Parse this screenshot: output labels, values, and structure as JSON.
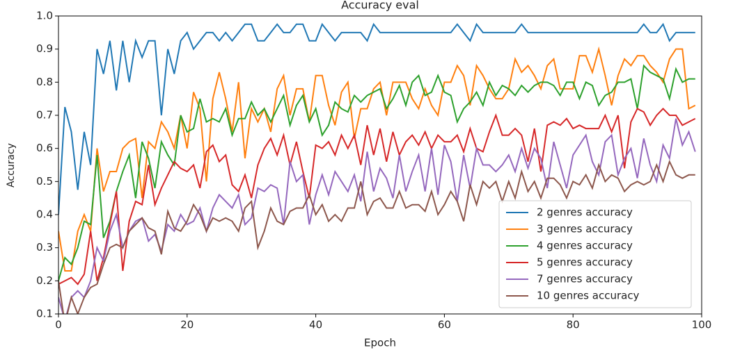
{
  "chart_data": {
    "type": "line",
    "title": "Accuracy eval",
    "x_label": "Epoch",
    "y_label": "Accuracy",
    "x": [
      0,
      1,
      2,
      3,
      4,
      5,
      6,
      7,
      8,
      9,
      10,
      11,
      12,
      13,
      14,
      15,
      16,
      17,
      18,
      19,
      20,
      21,
      22,
      23,
      24,
      25,
      26,
      27,
      28,
      29,
      30,
      31,
      32,
      33,
      34,
      35,
      36,
      37,
      38,
      39,
      40,
      41,
      42,
      43,
      44,
      45,
      46,
      47,
      48,
      49,
      50,
      51,
      52,
      53,
      54,
      55,
      56,
      57,
      58,
      59,
      60,
      61,
      62,
      63,
      64,
      65,
      66,
      67,
      68,
      69,
      70,
      71,
      72,
      73,
      74,
      75,
      76,
      77,
      78,
      79,
      80,
      81,
      82,
      83,
      84,
      85,
      86,
      87,
      88,
      89,
      90,
      91,
      92,
      93,
      94,
      95,
      96,
      97,
      98,
      99
    ],
    "xlim": [
      0,
      100
    ],
    "xticks": [
      0,
      20,
      40,
      60,
      80,
      100
    ],
    "ylim": [
      0.1,
      1.0
    ],
    "yticks": [
      0.1,
      0.2,
      0.3,
      0.4,
      0.5,
      0.6,
      0.7,
      0.8,
      0.9,
      {
        "value": 1.0,
        "label": "1.0"
      }
    ],
    "legend": "lower right",
    "series": [
      {
        "name": "2 genres accuracy",
        "color": "#1f77b4",
        "values": [
          0.4,
          0.725,
          0.65,
          0.475,
          0.65,
          0.55,
          0.9,
          0.825,
          0.925,
          0.775,
          0.925,
          0.8,
          0.925,
          0.875,
          0.925,
          0.925,
          0.7,
          0.9,
          0.825,
          0.925,
          0.95,
          0.9,
          0.925,
          0.95,
          0.95,
          0.925,
          0.95,
          0.925,
          0.95,
          0.975,
          0.975,
          0.925,
          0.925,
          0.95,
          0.975,
          0.95,
          0.95,
          0.975,
          0.975,
          0.925,
          0.925,
          0.975,
          0.95,
          0.925,
          0.95,
          0.95,
          0.95,
          0.95,
          0.925,
          0.975,
          0.95,
          0.95,
          0.95,
          0.95,
          0.95,
          0.95,
          0.95,
          0.95,
          0.95,
          0.95,
          0.95,
          0.95,
          0.975,
          0.95,
          0.925,
          0.975,
          0.95,
          0.95,
          0.95,
          0.95,
          0.95,
          0.95,
          0.975,
          0.95,
          0.95,
          0.95,
          0.95,
          0.95,
          0.95,
          0.95,
          0.95,
          0.95,
          0.95,
          0.95,
          0.95,
          0.95,
          0.95,
          0.95,
          0.95,
          0.95,
          0.95,
          0.975,
          0.95,
          0.95,
          0.975,
          0.925,
          0.95,
          0.95,
          0.95,
          0.95
        ]
      },
      {
        "name": "3 genres accuracy",
        "color": "#ff7f0e",
        "values": [
          0.35,
          0.23,
          0.23,
          0.35,
          0.4,
          0.35,
          0.6,
          0.47,
          0.53,
          0.53,
          0.6,
          0.62,
          0.63,
          0.45,
          0.62,
          0.6,
          0.68,
          0.65,
          0.6,
          0.7,
          0.6,
          0.77,
          0.72,
          0.5,
          0.75,
          0.83,
          0.75,
          0.65,
          0.8,
          0.57,
          0.72,
          0.68,
          0.72,
          0.65,
          0.78,
          0.82,
          0.7,
          0.78,
          0.78,
          0.68,
          0.82,
          0.82,
          0.73,
          0.67,
          0.77,
          0.8,
          0.63,
          0.72,
          0.72,
          0.78,
          0.8,
          0.7,
          0.8,
          0.8,
          0.8,
          0.75,
          0.72,
          0.78,
          0.73,
          0.7,
          0.8,
          0.8,
          0.85,
          0.82,
          0.73,
          0.85,
          0.82,
          0.78,
          0.75,
          0.75,
          0.78,
          0.87,
          0.83,
          0.85,
          0.82,
          0.78,
          0.85,
          0.87,
          0.78,
          0.78,
          0.78,
          0.88,
          0.88,
          0.83,
          0.9,
          0.82,
          0.73,
          0.82,
          0.87,
          0.85,
          0.88,
          0.88,
          0.85,
          0.83,
          0.8,
          0.87,
          0.9,
          0.9,
          0.72,
          0.73
        ]
      },
      {
        "name": "4 genres accuracy",
        "color": "#2ca02c",
        "values": [
          0.2,
          0.27,
          0.25,
          0.3,
          0.38,
          0.37,
          0.58,
          0.33,
          0.38,
          0.47,
          0.53,
          0.58,
          0.45,
          0.62,
          0.57,
          0.48,
          0.62,
          0.58,
          0.55,
          0.7,
          0.65,
          0.66,
          0.75,
          0.68,
          0.69,
          0.68,
          0.72,
          0.64,
          0.69,
          0.69,
          0.74,
          0.7,
          0.72,
          0.68,
          0.72,
          0.76,
          0.67,
          0.73,
          0.76,
          0.68,
          0.72,
          0.64,
          0.67,
          0.74,
          0.72,
          0.71,
          0.76,
          0.74,
          0.76,
          0.77,
          0.78,
          0.72,
          0.75,
          0.79,
          0.73,
          0.8,
          0.82,
          0.76,
          0.77,
          0.82,
          0.77,
          0.76,
          0.68,
          0.72,
          0.74,
          0.77,
          0.73,
          0.8,
          0.76,
          0.79,
          0.78,
          0.76,
          0.79,
          0.77,
          0.79,
          0.8,
          0.8,
          0.79,
          0.76,
          0.8,
          0.8,
          0.75,
          0.8,
          0.79,
          0.73,
          0.76,
          0.77,
          0.8,
          0.8,
          0.81,
          0.72,
          0.85,
          0.83,
          0.82,
          0.81,
          0.75,
          0.84,
          0.8,
          0.81,
          0.81
        ]
      },
      {
        "name": "5 genres accuracy",
        "color": "#d62728",
        "values": [
          0.19,
          0.2,
          0.21,
          0.19,
          0.22,
          0.35,
          0.2,
          0.27,
          0.37,
          0.47,
          0.23,
          0.38,
          0.44,
          0.43,
          0.55,
          0.43,
          0.48,
          0.52,
          0.56,
          0.54,
          0.53,
          0.55,
          0.48,
          0.59,
          0.61,
          0.56,
          0.58,
          0.49,
          0.47,
          0.52,
          0.45,
          0.55,
          0.6,
          0.63,
          0.58,
          0.64,
          0.55,
          0.62,
          0.53,
          0.45,
          0.61,
          0.6,
          0.62,
          0.58,
          0.64,
          0.6,
          0.64,
          0.55,
          0.67,
          0.58,
          0.66,
          0.56,
          0.65,
          0.58,
          0.62,
          0.64,
          0.61,
          0.65,
          0.6,
          0.64,
          0.62,
          0.62,
          0.64,
          0.59,
          0.66,
          0.6,
          0.59,
          0.65,
          0.7,
          0.64,
          0.64,
          0.66,
          0.64,
          0.56,
          0.66,
          0.53,
          0.67,
          0.68,
          0.67,
          0.69,
          0.66,
          0.67,
          0.66,
          0.66,
          0.66,
          0.7,
          0.65,
          0.7,
          0.54,
          0.68,
          0.72,
          0.71,
          0.67,
          0.7,
          0.72,
          0.7,
          0.7,
          0.67,
          0.68,
          0.69
        ]
      },
      {
        "name": "7 genres accuracy",
        "color": "#9467bd",
        "values": [
          0.15,
          0.08,
          0.15,
          0.17,
          0.15,
          0.2,
          0.3,
          0.26,
          0.35,
          0.4,
          0.3,
          0.35,
          0.38,
          0.39,
          0.32,
          0.34,
          0.29,
          0.37,
          0.35,
          0.4,
          0.37,
          0.38,
          0.42,
          0.35,
          0.42,
          0.46,
          0.44,
          0.42,
          0.46,
          0.37,
          0.39,
          0.48,
          0.47,
          0.49,
          0.48,
          0.37,
          0.56,
          0.5,
          0.52,
          0.37,
          0.46,
          0.52,
          0.46,
          0.53,
          0.5,
          0.47,
          0.52,
          0.44,
          0.59,
          0.47,
          0.54,
          0.51,
          0.45,
          0.58,
          0.47,
          0.53,
          0.58,
          0.47,
          0.6,
          0.46,
          0.61,
          0.56,
          0.44,
          0.58,
          0.48,
          0.6,
          0.55,
          0.55,
          0.53,
          0.55,
          0.58,
          0.53,
          0.6,
          0.54,
          0.6,
          0.57,
          0.48,
          0.62,
          0.55,
          0.48,
          0.58,
          0.61,
          0.64,
          0.56,
          0.52,
          0.62,
          0.64,
          0.52,
          0.57,
          0.6,
          0.51,
          0.63,
          0.55,
          0.5,
          0.61,
          0.57,
          0.69,
          0.61,
          0.65,
          0.59
        ]
      },
      {
        "name": "10 genres accuracy",
        "color": "#8c564b",
        "values": [
          0.2,
          0.07,
          0.15,
          0.1,
          0.15,
          0.18,
          0.19,
          0.25,
          0.3,
          0.31,
          0.3,
          0.35,
          0.37,
          0.39,
          0.36,
          0.35,
          0.28,
          0.41,
          0.36,
          0.35,
          0.38,
          0.43,
          0.4,
          0.35,
          0.39,
          0.38,
          0.39,
          0.38,
          0.35,
          0.42,
          0.44,
          0.3,
          0.35,
          0.42,
          0.38,
          0.37,
          0.41,
          0.42,
          0.42,
          0.46,
          0.4,
          0.43,
          0.38,
          0.4,
          0.38,
          0.42,
          0.42,
          0.5,
          0.4,
          0.44,
          0.45,
          0.42,
          0.42,
          0.47,
          0.42,
          0.43,
          0.43,
          0.41,
          0.47,
          0.4,
          0.43,
          0.47,
          0.44,
          0.38,
          0.49,
          0.43,
          0.5,
          0.48,
          0.5,
          0.44,
          0.5,
          0.45,
          0.53,
          0.47,
          0.5,
          0.45,
          0.51,
          0.51,
          0.49,
          0.45,
          0.5,
          0.49,
          0.52,
          0.48,
          0.55,
          0.5,
          0.52,
          0.51,
          0.47,
          0.49,
          0.5,
          0.49,
          0.5,
          0.55,
          0.5,
          0.56,
          0.52,
          0.51,
          0.52,
          0.52
        ]
      }
    ]
  }
}
